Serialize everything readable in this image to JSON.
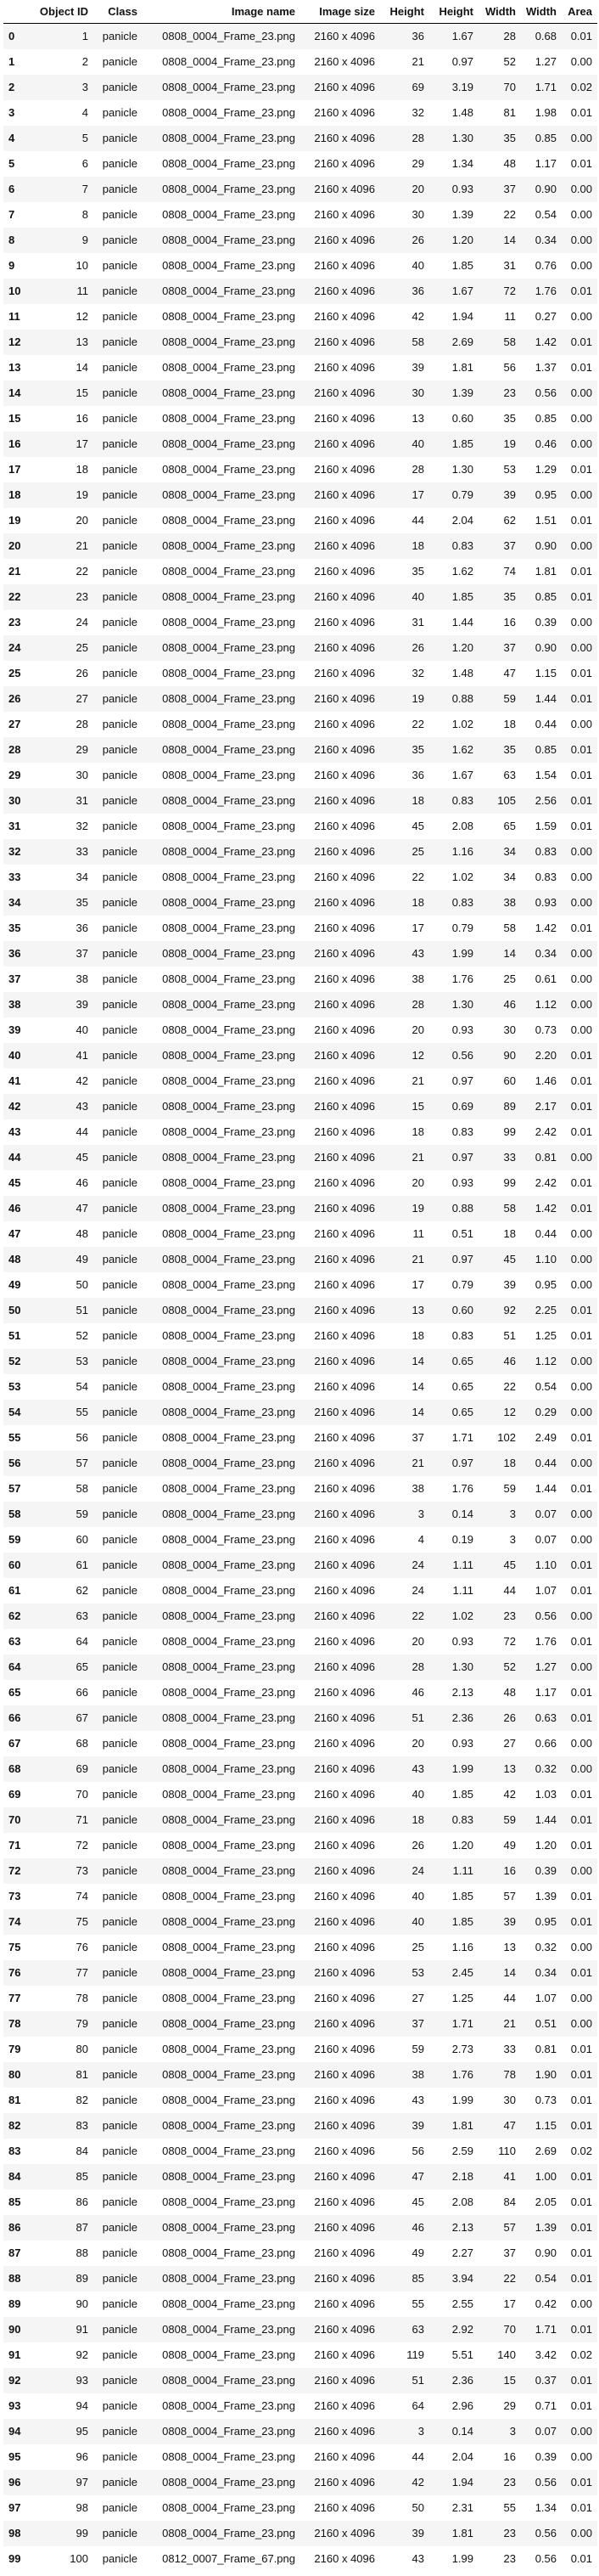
{
  "columns": [
    "",
    "Object ID",
    "Class",
    "Image name",
    "Image size",
    "Height",
    "Height",
    "Width",
    "Width",
    "Area"
  ],
  "rows": [
    [
      "0",
      "1",
      "panicle",
      "0808_0004_Frame_23.png",
      "2160 x 4096",
      "36",
      "1.67",
      "28",
      "0.68",
      "0.01"
    ],
    [
      "1",
      "2",
      "panicle",
      "0808_0004_Frame_23.png",
      "2160 x 4096",
      "21",
      "0.97",
      "52",
      "1.27",
      "0.00"
    ],
    [
      "2",
      "3",
      "panicle",
      "0808_0004_Frame_23.png",
      "2160 x 4096",
      "69",
      "3.19",
      "70",
      "1.71",
      "0.02"
    ],
    [
      "3",
      "4",
      "panicle",
      "0808_0004_Frame_23.png",
      "2160 x 4096",
      "32",
      "1.48",
      "81",
      "1.98",
      "0.01"
    ],
    [
      "4",
      "5",
      "panicle",
      "0808_0004_Frame_23.png",
      "2160 x 4096",
      "28",
      "1.30",
      "35",
      "0.85",
      "0.00"
    ],
    [
      "5",
      "6",
      "panicle",
      "0808_0004_Frame_23.png",
      "2160 x 4096",
      "29",
      "1.34",
      "48",
      "1.17",
      "0.01"
    ],
    [
      "6",
      "7",
      "panicle",
      "0808_0004_Frame_23.png",
      "2160 x 4096",
      "20",
      "0.93",
      "37",
      "0.90",
      "0.00"
    ],
    [
      "7",
      "8",
      "panicle",
      "0808_0004_Frame_23.png",
      "2160 x 4096",
      "30",
      "1.39",
      "22",
      "0.54",
      "0.00"
    ],
    [
      "8",
      "9",
      "panicle",
      "0808_0004_Frame_23.png",
      "2160 x 4096",
      "26",
      "1.20",
      "14",
      "0.34",
      "0.00"
    ],
    [
      "9",
      "10",
      "panicle",
      "0808_0004_Frame_23.png",
      "2160 x 4096",
      "40",
      "1.85",
      "31",
      "0.76",
      "0.00"
    ],
    [
      "10",
      "11",
      "panicle",
      "0808_0004_Frame_23.png",
      "2160 x 4096",
      "36",
      "1.67",
      "72",
      "1.76",
      "0.01"
    ],
    [
      "11",
      "12",
      "panicle",
      "0808_0004_Frame_23.png",
      "2160 x 4096",
      "42",
      "1.94",
      "11",
      "0.27",
      "0.00"
    ],
    [
      "12",
      "13",
      "panicle",
      "0808_0004_Frame_23.png",
      "2160 x 4096",
      "58",
      "2.69",
      "58",
      "1.42",
      "0.01"
    ],
    [
      "13",
      "14",
      "panicle",
      "0808_0004_Frame_23.png",
      "2160 x 4096",
      "39",
      "1.81",
      "56",
      "1.37",
      "0.01"
    ],
    [
      "14",
      "15",
      "panicle",
      "0808_0004_Frame_23.png",
      "2160 x 4096",
      "30",
      "1.39",
      "23",
      "0.56",
      "0.00"
    ],
    [
      "15",
      "16",
      "panicle",
      "0808_0004_Frame_23.png",
      "2160 x 4096",
      "13",
      "0.60",
      "35",
      "0.85",
      "0.00"
    ],
    [
      "16",
      "17",
      "panicle",
      "0808_0004_Frame_23.png",
      "2160 x 4096",
      "40",
      "1.85",
      "19",
      "0.46",
      "0.00"
    ],
    [
      "17",
      "18",
      "panicle",
      "0808_0004_Frame_23.png",
      "2160 x 4096",
      "28",
      "1.30",
      "53",
      "1.29",
      "0.01"
    ],
    [
      "18",
      "19",
      "panicle",
      "0808_0004_Frame_23.png",
      "2160 x 4096",
      "17",
      "0.79",
      "39",
      "0.95",
      "0.00"
    ],
    [
      "19",
      "20",
      "panicle",
      "0808_0004_Frame_23.png",
      "2160 x 4096",
      "44",
      "2.04",
      "62",
      "1.51",
      "0.01"
    ],
    [
      "20",
      "21",
      "panicle",
      "0808_0004_Frame_23.png",
      "2160 x 4096",
      "18",
      "0.83",
      "37",
      "0.90",
      "0.00"
    ],
    [
      "21",
      "22",
      "panicle",
      "0808_0004_Frame_23.png",
      "2160 x 4096",
      "35",
      "1.62",
      "74",
      "1.81",
      "0.01"
    ],
    [
      "22",
      "23",
      "panicle",
      "0808_0004_Frame_23.png",
      "2160 x 4096",
      "40",
      "1.85",
      "35",
      "0.85",
      "0.01"
    ],
    [
      "23",
      "24",
      "panicle",
      "0808_0004_Frame_23.png",
      "2160 x 4096",
      "31",
      "1.44",
      "16",
      "0.39",
      "0.00"
    ],
    [
      "24",
      "25",
      "panicle",
      "0808_0004_Frame_23.png",
      "2160 x 4096",
      "26",
      "1.20",
      "37",
      "0.90",
      "0.00"
    ],
    [
      "25",
      "26",
      "panicle",
      "0808_0004_Frame_23.png",
      "2160 x 4096",
      "32",
      "1.48",
      "47",
      "1.15",
      "0.01"
    ],
    [
      "26",
      "27",
      "panicle",
      "0808_0004_Frame_23.png",
      "2160 x 4096",
      "19",
      "0.88",
      "59",
      "1.44",
      "0.01"
    ],
    [
      "27",
      "28",
      "panicle",
      "0808_0004_Frame_23.png",
      "2160 x 4096",
      "22",
      "1.02",
      "18",
      "0.44",
      "0.00"
    ],
    [
      "28",
      "29",
      "panicle",
      "0808_0004_Frame_23.png",
      "2160 x 4096",
      "35",
      "1.62",
      "35",
      "0.85",
      "0.01"
    ],
    [
      "29",
      "30",
      "panicle",
      "0808_0004_Frame_23.png",
      "2160 x 4096",
      "36",
      "1.67",
      "63",
      "1.54",
      "0.01"
    ],
    [
      "30",
      "31",
      "panicle",
      "0808_0004_Frame_23.png",
      "2160 x 4096",
      "18",
      "0.83",
      "105",
      "2.56",
      "0.01"
    ],
    [
      "31",
      "32",
      "panicle",
      "0808_0004_Frame_23.png",
      "2160 x 4096",
      "45",
      "2.08",
      "65",
      "1.59",
      "0.01"
    ],
    [
      "32",
      "33",
      "panicle",
      "0808_0004_Frame_23.png",
      "2160 x 4096",
      "25",
      "1.16",
      "34",
      "0.83",
      "0.00"
    ],
    [
      "33",
      "34",
      "panicle",
      "0808_0004_Frame_23.png",
      "2160 x 4096",
      "22",
      "1.02",
      "34",
      "0.83",
      "0.00"
    ],
    [
      "34",
      "35",
      "panicle",
      "0808_0004_Frame_23.png",
      "2160 x 4096",
      "18",
      "0.83",
      "38",
      "0.93",
      "0.00"
    ],
    [
      "35",
      "36",
      "panicle",
      "0808_0004_Frame_23.png",
      "2160 x 4096",
      "17",
      "0.79",
      "58",
      "1.42",
      "0.01"
    ],
    [
      "36",
      "37",
      "panicle",
      "0808_0004_Frame_23.png",
      "2160 x 4096",
      "43",
      "1.99",
      "14",
      "0.34",
      "0.00"
    ],
    [
      "37",
      "38",
      "panicle",
      "0808_0004_Frame_23.png",
      "2160 x 4096",
      "38",
      "1.76",
      "25",
      "0.61",
      "0.00"
    ],
    [
      "38",
      "39",
      "panicle",
      "0808_0004_Frame_23.png",
      "2160 x 4096",
      "28",
      "1.30",
      "46",
      "1.12",
      "0.00"
    ],
    [
      "39",
      "40",
      "panicle",
      "0808_0004_Frame_23.png",
      "2160 x 4096",
      "20",
      "0.93",
      "30",
      "0.73",
      "0.00"
    ],
    [
      "40",
      "41",
      "panicle",
      "0808_0004_Frame_23.png",
      "2160 x 4096",
      "12",
      "0.56",
      "90",
      "2.20",
      "0.01"
    ],
    [
      "41",
      "42",
      "panicle",
      "0808_0004_Frame_23.png",
      "2160 x 4096",
      "21",
      "0.97",
      "60",
      "1.46",
      "0.01"
    ],
    [
      "42",
      "43",
      "panicle",
      "0808_0004_Frame_23.png",
      "2160 x 4096",
      "15",
      "0.69",
      "89",
      "2.17",
      "0.01"
    ],
    [
      "43",
      "44",
      "panicle",
      "0808_0004_Frame_23.png",
      "2160 x 4096",
      "18",
      "0.83",
      "99",
      "2.42",
      "0.01"
    ],
    [
      "44",
      "45",
      "panicle",
      "0808_0004_Frame_23.png",
      "2160 x 4096",
      "21",
      "0.97",
      "33",
      "0.81",
      "0.00"
    ],
    [
      "45",
      "46",
      "panicle",
      "0808_0004_Frame_23.png",
      "2160 x 4096",
      "20",
      "0.93",
      "99",
      "2.42",
      "0.01"
    ],
    [
      "46",
      "47",
      "panicle",
      "0808_0004_Frame_23.png",
      "2160 x 4096",
      "19",
      "0.88",
      "58",
      "1.42",
      "0.01"
    ],
    [
      "47",
      "48",
      "panicle",
      "0808_0004_Frame_23.png",
      "2160 x 4096",
      "11",
      "0.51",
      "18",
      "0.44",
      "0.00"
    ],
    [
      "48",
      "49",
      "panicle",
      "0808_0004_Frame_23.png",
      "2160 x 4096",
      "21",
      "0.97",
      "45",
      "1.10",
      "0.00"
    ],
    [
      "49",
      "50",
      "panicle",
      "0808_0004_Frame_23.png",
      "2160 x 4096",
      "17",
      "0.79",
      "39",
      "0.95",
      "0.00"
    ],
    [
      "50",
      "51",
      "panicle",
      "0808_0004_Frame_23.png",
      "2160 x 4096",
      "13",
      "0.60",
      "92",
      "2.25",
      "0.01"
    ],
    [
      "51",
      "52",
      "panicle",
      "0808_0004_Frame_23.png",
      "2160 x 4096",
      "18",
      "0.83",
      "51",
      "1.25",
      "0.01"
    ],
    [
      "52",
      "53",
      "panicle",
      "0808_0004_Frame_23.png",
      "2160 x 4096",
      "14",
      "0.65",
      "46",
      "1.12",
      "0.00"
    ],
    [
      "53",
      "54",
      "panicle",
      "0808_0004_Frame_23.png",
      "2160 x 4096",
      "14",
      "0.65",
      "22",
      "0.54",
      "0.00"
    ],
    [
      "54",
      "55",
      "panicle",
      "0808_0004_Frame_23.png",
      "2160 x 4096",
      "14",
      "0.65",
      "12",
      "0.29",
      "0.00"
    ],
    [
      "55",
      "56",
      "panicle",
      "0808_0004_Frame_23.png",
      "2160 x 4096",
      "37",
      "1.71",
      "102",
      "2.49",
      "0.01"
    ],
    [
      "56",
      "57",
      "panicle",
      "0808_0004_Frame_23.png",
      "2160 x 4096",
      "21",
      "0.97",
      "18",
      "0.44",
      "0.00"
    ],
    [
      "57",
      "58",
      "panicle",
      "0808_0004_Frame_23.png",
      "2160 x 4096",
      "38",
      "1.76",
      "59",
      "1.44",
      "0.01"
    ],
    [
      "58",
      "59",
      "panicle",
      "0808_0004_Frame_23.png",
      "2160 x 4096",
      "3",
      "0.14",
      "3",
      "0.07",
      "0.00"
    ],
    [
      "59",
      "60",
      "panicle",
      "0808_0004_Frame_23.png",
      "2160 x 4096",
      "4",
      "0.19",
      "3",
      "0.07",
      "0.00"
    ],
    [
      "60",
      "61",
      "panicle",
      "0808_0004_Frame_23.png",
      "2160 x 4096",
      "24",
      "1.11",
      "45",
      "1.10",
      "0.01"
    ],
    [
      "61",
      "62",
      "panicle",
      "0808_0004_Frame_23.png",
      "2160 x 4096",
      "24",
      "1.11",
      "44",
      "1.07",
      "0.01"
    ],
    [
      "62",
      "63",
      "panicle",
      "0808_0004_Frame_23.png",
      "2160 x 4096",
      "22",
      "1.02",
      "23",
      "0.56",
      "0.00"
    ],
    [
      "63",
      "64",
      "panicle",
      "0808_0004_Frame_23.png",
      "2160 x 4096",
      "20",
      "0.93",
      "72",
      "1.76",
      "0.01"
    ],
    [
      "64",
      "65",
      "panicle",
      "0808_0004_Frame_23.png",
      "2160 x 4096",
      "28",
      "1.30",
      "52",
      "1.27",
      "0.00"
    ],
    [
      "65",
      "66",
      "panicle",
      "0808_0004_Frame_23.png",
      "2160 x 4096",
      "46",
      "2.13",
      "48",
      "1.17",
      "0.01"
    ],
    [
      "66",
      "67",
      "panicle",
      "0808_0004_Frame_23.png",
      "2160 x 4096",
      "51",
      "2.36",
      "26",
      "0.63",
      "0.01"
    ],
    [
      "67",
      "68",
      "panicle",
      "0808_0004_Frame_23.png",
      "2160 x 4096",
      "20",
      "0.93",
      "27",
      "0.66",
      "0.00"
    ],
    [
      "68",
      "69",
      "panicle",
      "0808_0004_Frame_23.png",
      "2160 x 4096",
      "43",
      "1.99",
      "13",
      "0.32",
      "0.00"
    ],
    [
      "69",
      "70",
      "panicle",
      "0808_0004_Frame_23.png",
      "2160 x 4096",
      "40",
      "1.85",
      "42",
      "1.03",
      "0.01"
    ],
    [
      "70",
      "71",
      "panicle",
      "0808_0004_Frame_23.png",
      "2160 x 4096",
      "18",
      "0.83",
      "59",
      "1.44",
      "0.01"
    ],
    [
      "71",
      "72",
      "panicle",
      "0808_0004_Frame_23.png",
      "2160 x 4096",
      "26",
      "1.20",
      "49",
      "1.20",
      "0.01"
    ],
    [
      "72",
      "73",
      "panicle",
      "0808_0004_Frame_23.png",
      "2160 x 4096",
      "24",
      "1.11",
      "16",
      "0.39",
      "0.00"
    ],
    [
      "73",
      "74",
      "panicle",
      "0808_0004_Frame_23.png",
      "2160 x 4096",
      "40",
      "1.85",
      "57",
      "1.39",
      "0.01"
    ],
    [
      "74",
      "75",
      "panicle",
      "0808_0004_Frame_23.png",
      "2160 x 4096",
      "40",
      "1.85",
      "39",
      "0.95",
      "0.01"
    ],
    [
      "75",
      "76",
      "panicle",
      "0808_0004_Frame_23.png",
      "2160 x 4096",
      "25",
      "1.16",
      "13",
      "0.32",
      "0.00"
    ],
    [
      "76",
      "77",
      "panicle",
      "0808_0004_Frame_23.png",
      "2160 x 4096",
      "53",
      "2.45",
      "14",
      "0.34",
      "0.01"
    ],
    [
      "77",
      "78",
      "panicle",
      "0808_0004_Frame_23.png",
      "2160 x 4096",
      "27",
      "1.25",
      "44",
      "1.07",
      "0.00"
    ],
    [
      "78",
      "79",
      "panicle",
      "0808_0004_Frame_23.png",
      "2160 x 4096",
      "37",
      "1.71",
      "21",
      "0.51",
      "0.00"
    ],
    [
      "79",
      "80",
      "panicle",
      "0808_0004_Frame_23.png",
      "2160 x 4096",
      "59",
      "2.73",
      "33",
      "0.81",
      "0.01"
    ],
    [
      "80",
      "81",
      "panicle",
      "0808_0004_Frame_23.png",
      "2160 x 4096",
      "38",
      "1.76",
      "78",
      "1.90",
      "0.01"
    ],
    [
      "81",
      "82",
      "panicle",
      "0808_0004_Frame_23.png",
      "2160 x 4096",
      "43",
      "1.99",
      "30",
      "0.73",
      "0.01"
    ],
    [
      "82",
      "83",
      "panicle",
      "0808_0004_Frame_23.png",
      "2160 x 4096",
      "39",
      "1.81",
      "47",
      "1.15",
      "0.01"
    ],
    [
      "83",
      "84",
      "panicle",
      "0808_0004_Frame_23.png",
      "2160 x 4096",
      "56",
      "2.59",
      "110",
      "2.69",
      "0.02"
    ],
    [
      "84",
      "85",
      "panicle",
      "0808_0004_Frame_23.png",
      "2160 x 4096",
      "47",
      "2.18",
      "41",
      "1.00",
      "0.01"
    ],
    [
      "85",
      "86",
      "panicle",
      "0808_0004_Frame_23.png",
      "2160 x 4096",
      "45",
      "2.08",
      "84",
      "2.05",
      "0.01"
    ],
    [
      "86",
      "87",
      "panicle",
      "0808_0004_Frame_23.png",
      "2160 x 4096",
      "46",
      "2.13",
      "57",
      "1.39",
      "0.01"
    ],
    [
      "87",
      "88",
      "panicle",
      "0808_0004_Frame_23.png",
      "2160 x 4096",
      "49",
      "2.27",
      "37",
      "0.90",
      "0.01"
    ],
    [
      "88",
      "89",
      "panicle",
      "0808_0004_Frame_23.png",
      "2160 x 4096",
      "85",
      "3.94",
      "22",
      "0.54",
      "0.01"
    ],
    [
      "89",
      "90",
      "panicle",
      "0808_0004_Frame_23.png",
      "2160 x 4096",
      "55",
      "2.55",
      "17",
      "0.42",
      "0.00"
    ],
    [
      "90",
      "91",
      "panicle",
      "0808_0004_Frame_23.png",
      "2160 x 4096",
      "63",
      "2.92",
      "70",
      "1.71",
      "0.01"
    ],
    [
      "91",
      "92",
      "panicle",
      "0808_0004_Frame_23.png",
      "2160 x 4096",
      "119",
      "5.51",
      "140",
      "3.42",
      "0.02"
    ],
    [
      "92",
      "93",
      "panicle",
      "0808_0004_Frame_23.png",
      "2160 x 4096",
      "51",
      "2.36",
      "15",
      "0.37",
      "0.01"
    ],
    [
      "93",
      "94",
      "panicle",
      "0808_0004_Frame_23.png",
      "2160 x 4096",
      "64",
      "2.96",
      "29",
      "0.71",
      "0.01"
    ],
    [
      "94",
      "95",
      "panicle",
      "0808_0004_Frame_23.png",
      "2160 x 4096",
      "3",
      "0.14",
      "3",
      "0.07",
      "0.00"
    ],
    [
      "95",
      "96",
      "panicle",
      "0808_0004_Frame_23.png",
      "2160 x 4096",
      "44",
      "2.04",
      "16",
      "0.39",
      "0.00"
    ],
    [
      "96",
      "97",
      "panicle",
      "0808_0004_Frame_23.png",
      "2160 x 4096",
      "42",
      "1.94",
      "23",
      "0.56",
      "0.01"
    ],
    [
      "97",
      "98",
      "panicle",
      "0808_0004_Frame_23.png",
      "2160 x 4096",
      "50",
      "2.31",
      "55",
      "1.34",
      "0.01"
    ],
    [
      "98",
      "99",
      "panicle",
      "0808_0004_Frame_23.png",
      "2160 x 4096",
      "39",
      "1.81",
      "23",
      "0.56",
      "0.00"
    ],
    [
      "99",
      "100",
      "panicle",
      "0812_0007_Frame_67.png",
      "2160 x 4096",
      "43",
      "1.99",
      "23",
      "0.56",
      "0.01"
    ]
  ]
}
